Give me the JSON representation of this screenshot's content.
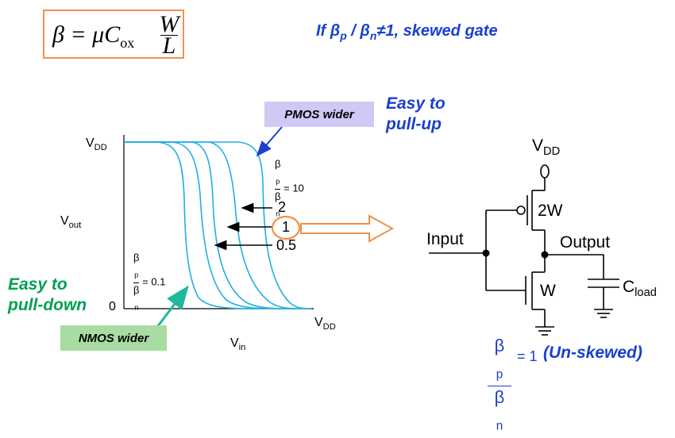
{
  "formula": {
    "lhs": "β = μC",
    "sub": "ox",
    "num": "W",
    "den": "L"
  },
  "note": {
    "prefix": "If β",
    "p": "p",
    "mid": " / β",
    "n": "n",
    "suffix": "≠1, skewed gate"
  },
  "plot": {
    "vdd_label": "V",
    "vdd_sub": "DD",
    "vout_label": "V",
    "vout_sub": "out",
    "vin_label": "V",
    "vin_sub": "in",
    "zero_label": "0",
    "xvdd_label": "V",
    "xvdd_sub": "DD",
    "ratio_top": {
      "num": "β",
      "num_sub": "p",
      "den": "β",
      "den_sub": "n",
      "value": "= 10"
    },
    "ratio_bottom": {
      "num": "β",
      "num_sub": "p",
      "den": "β",
      "den_sub": "n",
      "value": "= 0.1"
    },
    "arrow_labels": [
      "2",
      "1",
      "0.5"
    ]
  },
  "annotations": {
    "pmos_callout": "PMOS wider",
    "nmos_callout": "NMOS wider",
    "pull_up_line1": "Easy to",
    "pull_up_line2": "pull-up",
    "pull_down_line1": "Easy to",
    "pull_down_line2": "pull-down"
  },
  "circuit": {
    "vdd_label": "V",
    "vdd_sub": "DD",
    "pmos_label": "2W",
    "nmos_label": "W",
    "input_label": "Input",
    "output_label": "Output",
    "cload_label": "C",
    "cload_sub": "load"
  },
  "unskewed": {
    "num": "β",
    "num_sub": "p",
    "den": "β",
    "den_sub": "n",
    "eq": "= 1",
    "note": "(Un-skewed)"
  },
  "colors": {
    "curve": "#20b0e0",
    "accent_blue": "#1a3fcf",
    "accent_green": "#00a050",
    "orange": "#f0914c"
  }
}
